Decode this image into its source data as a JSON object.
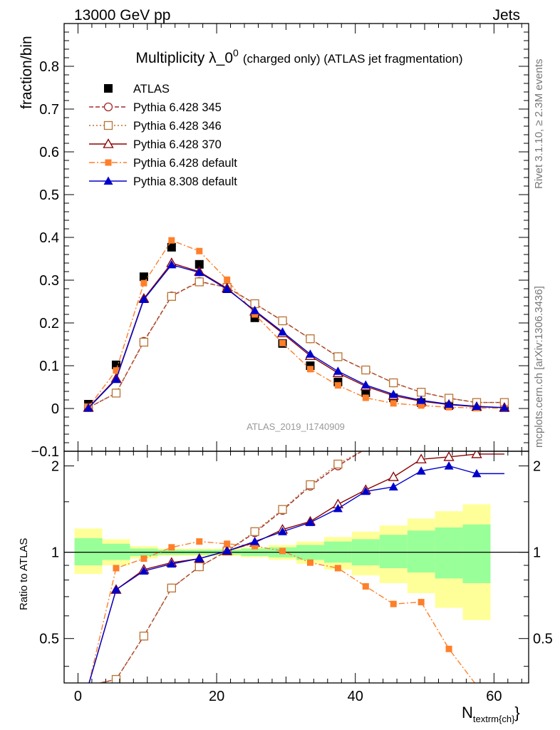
{
  "header": {
    "left": "13000 GeV pp",
    "right": "Jets",
    "side_top": "Rivet 3.1.10, ≥ 2.3M events",
    "side_bottom": "mcplots.cern.ch [arXiv:1306.3436]",
    "watermark": "ATLAS_2019_I1740909"
  },
  "chart_data": {
    "type": "line",
    "title_main": "Multiplicity λ_0",
    "title_sup": "0",
    "title_rest": "(charged only) (ATLAS jet fragmentation)",
    "ylabel": "fraction/bin",
    "ratio_ylabel": "Ratio to ATLAS",
    "xlabel_main": "N",
    "xlabel_sub": "textrm{ch}",
    "xlabel_tail": "}",
    "xlim": [
      -2,
      65
    ],
    "ylim": [
      -0.1,
      0.9
    ],
    "ratio_ylim": [
      0.35,
      2.25
    ],
    "x_ticks": [
      "0",
      "20",
      "40",
      "60"
    ],
    "x_tick_values": [
      0,
      20,
      40,
      60
    ],
    "y_ticks": [
      "−0.1",
      "0",
      "0.1",
      "0.2",
      "0.3",
      "0.4",
      "0.5",
      "0.6",
      "0.7",
      "0.8"
    ],
    "y_tick_values": [
      -0.1,
      0,
      0.1,
      0.2,
      0.3,
      0.4,
      0.5,
      0.6,
      0.7,
      0.8
    ],
    "ratio_ticks": [
      "0.5",
      "1",
      "2"
    ],
    "ratio_tick_values": [
      0.5,
      1,
      2
    ],
    "x": [
      1.5,
      5.5,
      9.5,
      13.5,
      17.5,
      21.5,
      25.5,
      29.5,
      33.5,
      37.5,
      41.5,
      45.5,
      49.5,
      53.5,
      57.5,
      61.5
    ],
    "bin_edges": [
      -0.5,
      3.5,
      7.5,
      11.5,
      15.5,
      19.5,
      23.5,
      27.5,
      31.5,
      35.5,
      39.5,
      43.5,
      47.5,
      51.5,
      55.5,
      59.5
    ],
    "data": {
      "name": "ATLAS",
      "color": "#000000",
      "values": [
        0.01,
        0.102,
        0.308,
        0.377,
        0.337,
        0.28,
        0.212,
        0.152,
        0.1,
        0.062,
        0.037,
        0.025,
        0.014,
        0.007,
        0.004,
        0.002
      ]
    },
    "series": [
      {
        "name": "Pythia 6.428 345",
        "color": "#a52a2a",
        "marker": "open-circle",
        "dash": "6,3",
        "values": [
          0.002,
          0.036,
          0.157,
          0.263,
          0.297,
          0.283,
          0.245,
          0.205,
          0.163,
          0.121,
          0.09,
          0.06,
          0.038,
          0.024,
          0.014,
          0.014
        ]
      },
      {
        "name": "Pythia 6.428 346",
        "color": "#b87333",
        "marker": "open-square",
        "dash": "2,3",
        "values": [
          0.002,
          0.036,
          0.155,
          0.262,
          0.296,
          0.283,
          0.245,
          0.205,
          0.163,
          0.121,
          0.09,
          0.06,
          0.038,
          0.024,
          0.014,
          0.014
        ]
      },
      {
        "name": "Pythia 6.428 370",
        "color": "#8b0000",
        "marker": "open-triangle",
        "dash": "",
        "values": [
          0.002,
          0.07,
          0.257,
          0.34,
          0.32,
          0.281,
          0.227,
          0.176,
          0.123,
          0.083,
          0.052,
          0.03,
          0.017,
          0.009,
          0.004,
          0.002
        ]
      },
      {
        "name": "Pythia 6.428 default",
        "color": "#ff7f2a",
        "marker": "filled-square",
        "dash": "8,3,2,3",
        "values": [
          0.003,
          0.089,
          0.293,
          0.393,
          0.368,
          0.301,
          0.22,
          0.153,
          0.092,
          0.054,
          0.025,
          0.012,
          0.007,
          0.003,
          0.001,
          0.0006
        ]
      },
      {
        "name": "Pythia 8.308 default",
        "color": "#0000cc",
        "marker": "filled-triangle",
        "dash": "",
        "values": [
          0.001,
          0.068,
          0.255,
          0.336,
          0.318,
          0.279,
          0.229,
          0.179,
          0.127,
          0.087,
          0.055,
          0.033,
          0.019,
          0.01,
          0.005,
          0.002
        ]
      }
    ],
    "ratios": [
      [
        0.2,
        0.36,
        0.51,
        0.75,
        0.89,
        1.01,
        1.17,
        1.4,
        1.7,
        2.0,
        2.4,
        2.4,
        2.4,
        2.4,
        2.4,
        2.4
      ],
      [
        0.2,
        0.36,
        0.51,
        0.75,
        0.89,
        1.01,
        1.18,
        1.41,
        1.72,
        2.03,
        2.4,
        2.4,
        2.4,
        2.4,
        2.4,
        2.4
      ],
      [
        0.2,
        0.74,
        0.87,
        0.92,
        0.95,
        1.01,
        1.08,
        1.2,
        1.28,
        1.47,
        1.65,
        1.83,
        2.11,
        2.15,
        2.2,
        2.2
      ],
      [
        0.3,
        0.88,
        0.95,
        1.04,
        1.09,
        1.07,
        1.05,
        1.01,
        0.92,
        0.88,
        0.76,
        0.66,
        0.67,
        0.46,
        0.33,
        0.33
      ],
      [
        0.1,
        0.74,
        0.86,
        0.91,
        0.95,
        1.01,
        1.09,
        1.18,
        1.27,
        1.42,
        1.63,
        1.69,
        1.92,
        2.0,
        1.88,
        1.88
      ]
    ],
    "ratio_n_points": [
      16,
      16,
      15,
      15,
      15
    ],
    "band_inner": [
      [
        0.9,
        1.12
      ],
      [
        0.94,
        1.07
      ],
      [
        0.97,
        1.03
      ],
      [
        0.98,
        1.02
      ],
      [
        0.98,
        1.02
      ],
      [
        0.98,
        1.02
      ],
      [
        0.97,
        1.03
      ],
      [
        0.96,
        1.04
      ],
      [
        0.94,
        1.06
      ],
      [
        0.92,
        1.09
      ],
      [
        0.9,
        1.11
      ],
      [
        0.88,
        1.15
      ],
      [
        0.85,
        1.19
      ],
      [
        0.81,
        1.22
      ],
      [
        0.78,
        1.25
      ]
    ],
    "band_outer": [
      [
        0.84,
        1.21
      ],
      [
        0.9,
        1.11
      ],
      [
        0.95,
        1.05
      ],
      [
        0.97,
        1.03
      ],
      [
        0.97,
        1.03
      ],
      [
        0.97,
        1.03
      ],
      [
        0.96,
        1.04
      ],
      [
        0.94,
        1.06
      ],
      [
        0.91,
        1.09
      ],
      [
        0.87,
        1.13
      ],
      [
        0.83,
        1.18
      ],
      [
        0.78,
        1.24
      ],
      [
        0.72,
        1.31
      ],
      [
        0.64,
        1.39
      ],
      [
        0.58,
        1.47
      ]
    ]
  }
}
